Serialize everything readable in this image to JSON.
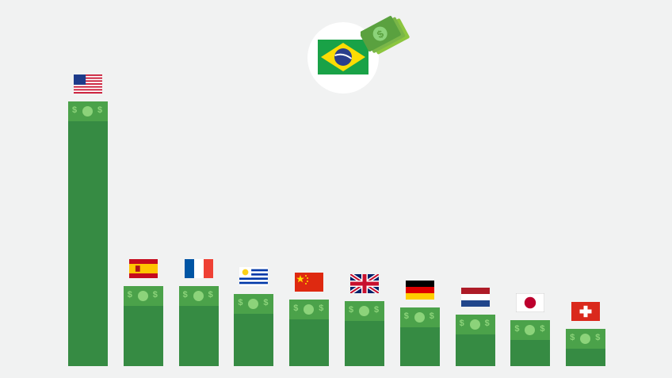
{
  "chart_data": {
    "type": "bar",
    "categories": [
      "USA",
      "Spain",
      "France",
      "Uruguay",
      "China",
      "United Kingdom",
      "Germany",
      "Netherlands",
      "Japan",
      "Switzerland"
    ],
    "values": [
      335,
      101,
      101,
      91,
      84,
      82,
      74,
      65,
      58,
      47
    ],
    "xlabel": "",
    "ylabel": "",
    "grid": false,
    "highlight_country": "Brazil"
  },
  "colors": {
    "background": "#f1f2f2",
    "bar": "#368b43",
    "bill": "#4ba24a",
    "bill_symbol": "#8cd37a"
  },
  "icons": {
    "center_flag": "brazil-flag-icon",
    "money": "money-bills-icon",
    "bar_top": "dollar-bill-icon"
  }
}
